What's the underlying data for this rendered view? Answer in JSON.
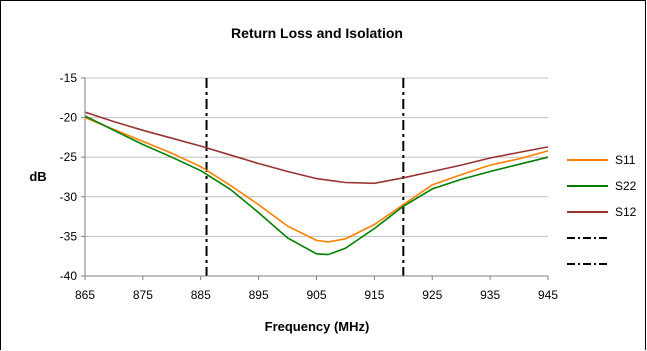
{
  "chart_data": {
    "type": "line",
    "title": "Return Loss and Isolation",
    "xlabel": "Frequency (MHz)",
    "ylabel": "dB",
    "xlim": [
      865,
      945
    ],
    "ylim": [
      -40,
      -15
    ],
    "xticks": [
      865,
      875,
      885,
      895,
      905,
      915,
      925,
      935,
      945
    ],
    "yticks": [
      -15,
      -20,
      -25,
      -30,
      -35,
      -40
    ],
    "grid": "horizontal",
    "legend_position": "right",
    "x": [
      865,
      870,
      875,
      880,
      885,
      890,
      895,
      900,
      905,
      907,
      910,
      915,
      920,
      925,
      930,
      935,
      940,
      945
    ],
    "series": [
      {
        "name": "S11",
        "color": "#FF8000",
        "values": [
          -20.0,
          -21.5,
          -23.0,
          -24.5,
          -26.2,
          -28.5,
          -31.0,
          -33.7,
          -35.5,
          -35.7,
          -35.3,
          -33.5,
          -31.0,
          -28.5,
          -27.2,
          -26.0,
          -25.2,
          -24.2
        ]
      },
      {
        "name": "S22",
        "color": "#008000",
        "values": [
          -19.8,
          -21.6,
          -23.4,
          -25.0,
          -26.7,
          -29.0,
          -32.0,
          -35.2,
          -37.2,
          -37.3,
          -36.5,
          -34.0,
          -31.2,
          -29.0,
          -27.8,
          -26.8,
          -25.9,
          -25.0
        ]
      },
      {
        "name": "S12",
        "color": "#993333",
        "values": [
          -19.3,
          -20.5,
          -21.6,
          -22.6,
          -23.6,
          -24.7,
          -25.8,
          -26.8,
          -27.7,
          -27.9,
          -28.2,
          -28.3,
          -27.6,
          -26.8,
          -26.0,
          -25.1,
          -24.4,
          -23.7
        ]
      }
    ],
    "markers": [
      {
        "x": 886,
        "style": "dash-dot",
        "color": "#000000"
      },
      {
        "x": 920,
        "style": "dash-dot",
        "color": "#000000"
      }
    ]
  }
}
